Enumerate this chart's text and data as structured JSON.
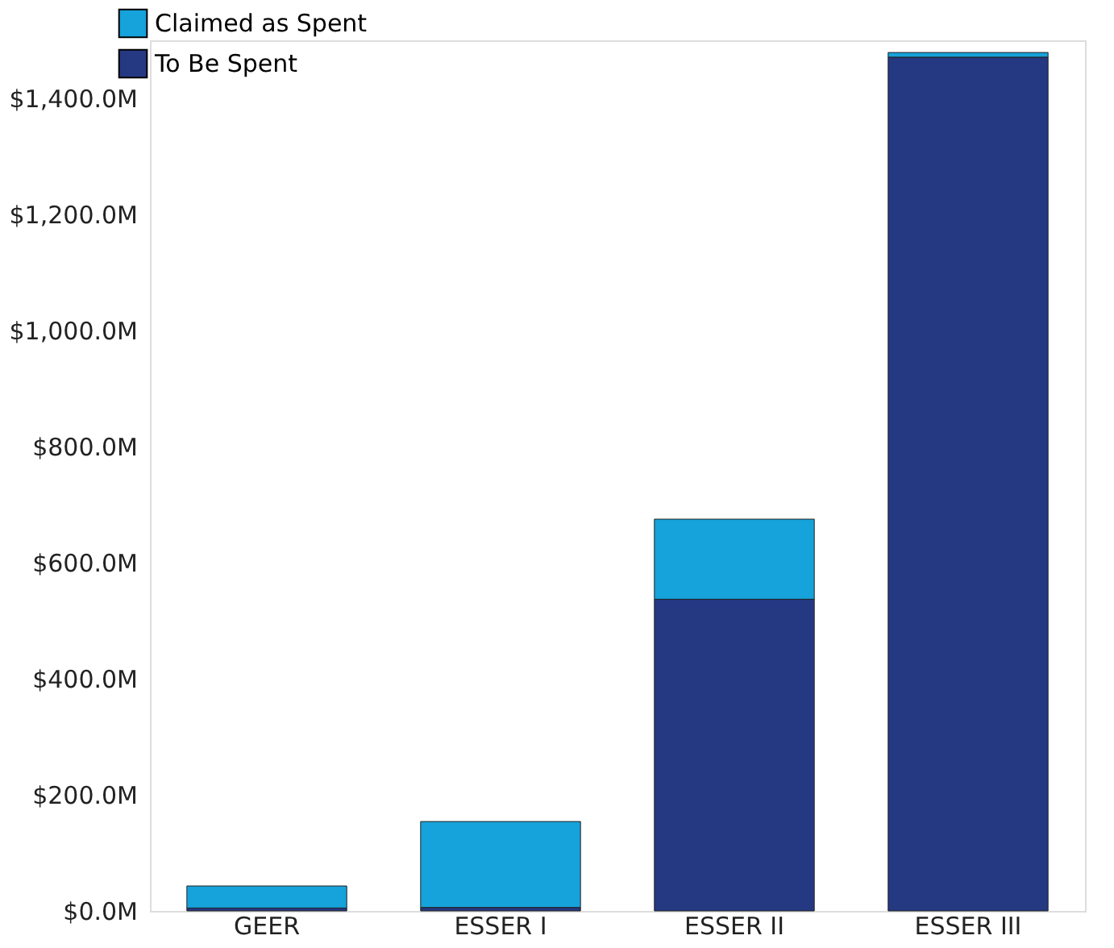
{
  "chart_data": {
    "type": "bar",
    "stacked": true,
    "categories": [
      "GEER",
      "ESSER I",
      "ESSER II",
      "ESSER III"
    ],
    "series": [
      {
        "name": "To Be Spent",
        "color": "#253882",
        "values": [
          5,
          6,
          537,
          1471
        ]
      },
      {
        "name": "Claimed as Spent",
        "color": "#16a2da",
        "values": [
          38,
          148,
          138,
          8
        ]
      }
    ],
    "ylim": [
      0,
      1500
    ],
    "yticks": [
      {
        "value": 0,
        "label": "$0.0M"
      },
      {
        "value": 200,
        "label": "$200.0M"
      },
      {
        "value": 400,
        "label": "$400.0M"
      },
      {
        "value": 600,
        "label": "$600.0M"
      },
      {
        "value": 800,
        "label": "$800.0M"
      },
      {
        "value": 1000,
        "label": "$1,000.0M"
      },
      {
        "value": 1200,
        "label": "$1,200.0M"
      },
      {
        "value": 1400,
        "label": "$1,400.0M"
      }
    ],
    "grid": false,
    "legend": "top left"
  }
}
